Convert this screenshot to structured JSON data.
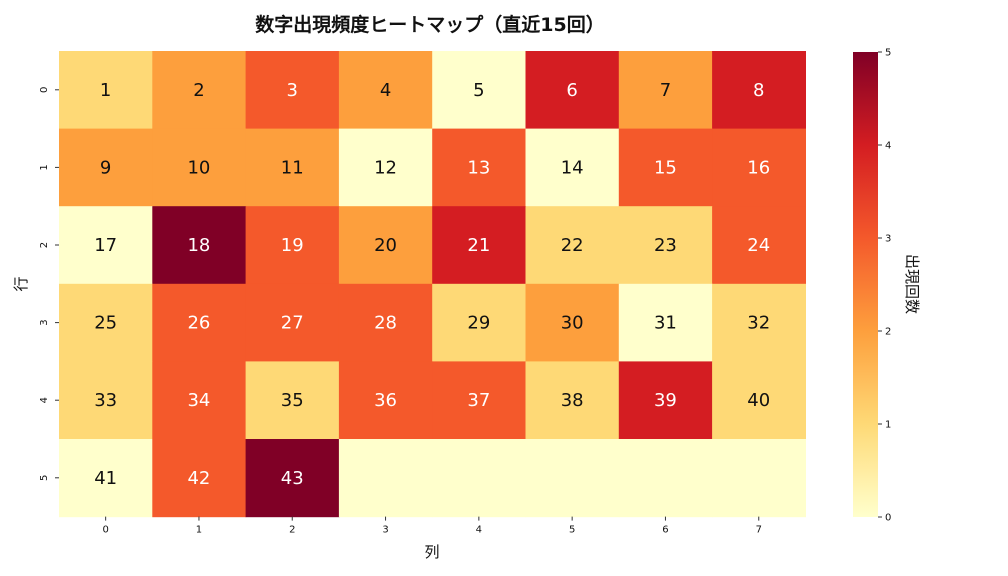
{
  "chart_data": {
    "type": "heatmap",
    "title": "数字出現頻度ヒートマップ（直近15回）",
    "xlabel": "列",
    "ylabel": "行",
    "colorbar_label": "出現回数",
    "x_ticks": [
      "0",
      "1",
      "2",
      "3",
      "4",
      "5",
      "6",
      "7"
    ],
    "y_ticks": [
      "0",
      "1",
      "2",
      "3",
      "4",
      "5"
    ],
    "colorbar_ticks": [
      "0",
      "1",
      "2",
      "3",
      "4",
      "5"
    ],
    "vmin": 0,
    "vmax": 5,
    "colormap": "YlOrRd",
    "cell_labels": [
      [
        "1",
        "2",
        "3",
        "4",
        "5",
        "6",
        "7",
        "8"
      ],
      [
        "9",
        "10",
        "11",
        "12",
        "13",
        "14",
        "15",
        "16"
      ],
      [
        "17",
        "18",
        "19",
        "20",
        "21",
        "22",
        "23",
        "24"
      ],
      [
        "25",
        "26",
        "27",
        "28",
        "29",
        "30",
        "31",
        "32"
      ],
      [
        "33",
        "34",
        "35",
        "36",
        "37",
        "38",
        "39",
        "40"
      ],
      [
        "41",
        "42",
        "43",
        "",
        "",
        "",
        "",
        ""
      ]
    ],
    "values": [
      [
        1,
        2,
        3,
        2,
        0,
        4,
        2,
        4
      ],
      [
        2,
        2,
        2,
        0,
        3,
        0,
        3,
        3
      ],
      [
        0,
        5,
        3,
        2,
        4,
        1,
        1,
        3
      ],
      [
        1,
        3,
        3,
        3,
        1,
        2,
        0,
        1
      ],
      [
        1,
        3,
        1,
        3,
        3,
        1,
        4,
        1
      ],
      [
        0,
        3,
        5,
        0,
        0,
        0,
        0,
        0
      ]
    ]
  }
}
